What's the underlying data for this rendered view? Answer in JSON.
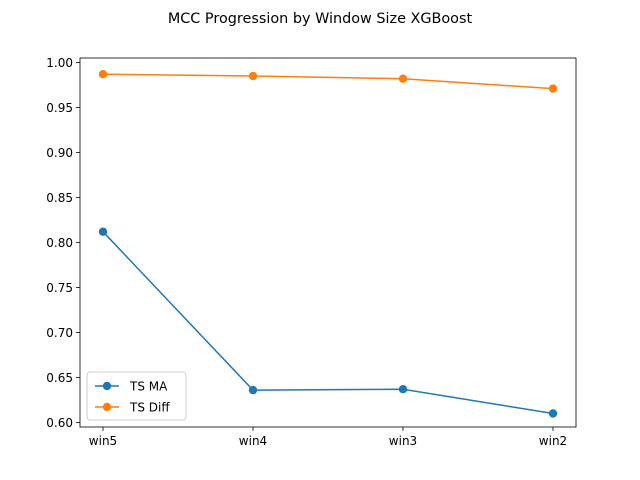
{
  "chart_data": {
    "type": "line",
    "title": "MCC Progression by Window Size XGBoost",
    "xlabel": "",
    "ylabel": "",
    "categories": [
      "win5",
      "win4",
      "win3",
      "win2"
    ],
    "ylim": [
      0.595,
      1.005
    ],
    "yticks": [
      "0.60",
      "0.65",
      "0.70",
      "0.75",
      "0.80",
      "0.85",
      "0.90",
      "0.95",
      "1.00"
    ],
    "grid": false,
    "legend_position": "lower-left",
    "series": [
      {
        "name": "TS MA",
        "color": "#1f77b4",
        "values": [
          0.812,
          0.636,
          0.637,
          0.61
        ]
      },
      {
        "name": "TS Diff",
        "color": "#ff7f0e",
        "values": [
          0.987,
          0.985,
          0.982,
          0.971
        ]
      }
    ]
  }
}
